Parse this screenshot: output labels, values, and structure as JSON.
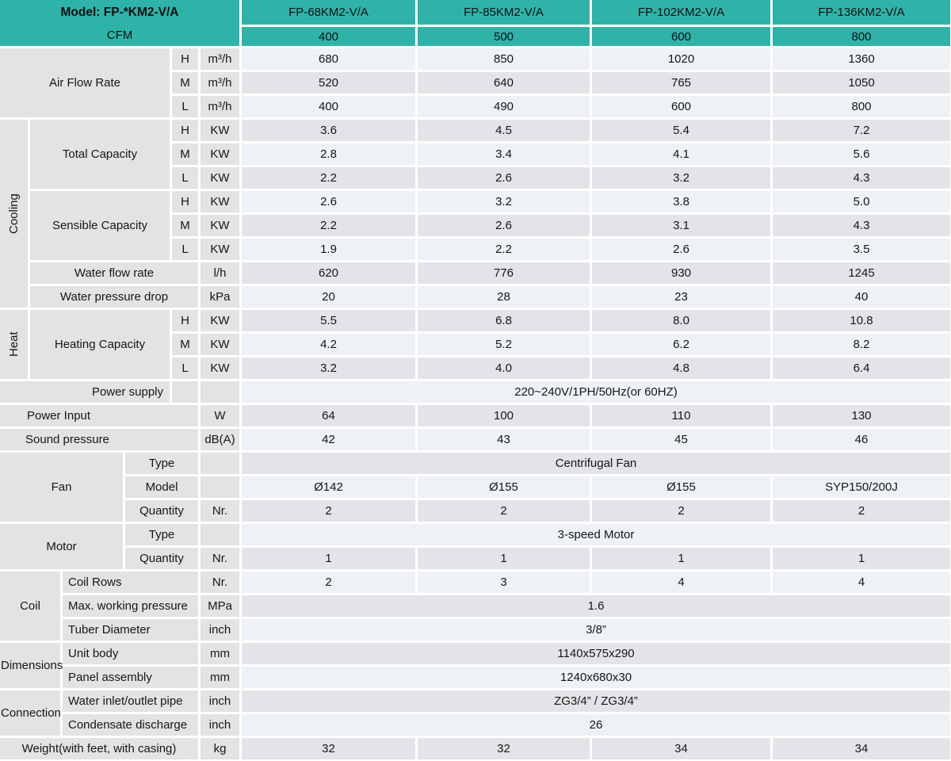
{
  "header": {
    "model_label": "Model: FP-*KM2-V/A",
    "cfm_label": "CFM",
    "models": [
      "FP-68KM2-V/A",
      "FP-85KM2-V/A",
      "FP-102KM2-V/A",
      "FP-136KM2-V/A"
    ],
    "cfm_values": [
      "400",
      "500",
      "600",
      "800"
    ]
  },
  "speeds": [
    "H",
    "M",
    "L"
  ],
  "air_flow": {
    "label": "Air Flow Rate",
    "unit": "m³/h",
    "h": [
      "680",
      "850",
      "1020",
      "1360"
    ],
    "m": [
      "520",
      "640",
      "765",
      "1050"
    ],
    "l": [
      "400",
      "490",
      "600",
      "800"
    ]
  },
  "cooling": {
    "label": "Cooling",
    "total_capacity": {
      "label": "Total Capacity",
      "unit": "KW",
      "h": [
        "3.6",
        "4.5",
        "5.4",
        "7.2"
      ],
      "m": [
        "2.8",
        "3.4",
        "4.1",
        "5.6"
      ],
      "l": [
        "2.2",
        "2.6",
        "3.2",
        "4.3"
      ]
    },
    "sensible_capacity": {
      "label": "Sensible Capacity",
      "unit": "KW",
      "h": [
        "2.6",
        "3.2",
        "3.8",
        "5.0"
      ],
      "m": [
        "2.2",
        "2.6",
        "3.1",
        "4.3"
      ],
      "l": [
        "1.9",
        "2.2",
        "2.6",
        "3.5"
      ]
    },
    "water_flow_rate": {
      "label": "Water flow rate",
      "unit": "l/h",
      "values": [
        "620",
        "776",
        "930",
        "1245"
      ]
    },
    "water_pressure_drop": {
      "label": "Water pressure drop",
      "unit": "kPa",
      "values": [
        "20",
        "28",
        "23",
        "40"
      ]
    }
  },
  "heat": {
    "label": "Heat",
    "heating_capacity": {
      "label": "Heating Capacity",
      "unit": "KW",
      "h": [
        "5.5",
        "6.8",
        "8.0",
        "10.8"
      ],
      "m": [
        "4.2",
        "5.2",
        "6.2",
        "8.2"
      ],
      "l": [
        "3.2",
        "4.0",
        "4.8",
        "6.4"
      ]
    }
  },
  "power_supply": {
    "label": "Power supply",
    "value": "220~240V/1PH/50Hz(or 60HZ)"
  },
  "power_input": {
    "label": "Power Input",
    "unit": "W",
    "values": [
      "64",
      "100",
      "110",
      "130"
    ]
  },
  "sound_pressure": {
    "label": "Sound pressure",
    "unit": "dB(A)",
    "values": [
      "42",
      "43",
      "45",
      "46"
    ]
  },
  "fan": {
    "label": "Fan",
    "type": {
      "label": "Type",
      "value": "Centrifugal Fan"
    },
    "model": {
      "label": "Model",
      "values": [
        "Ø142",
        "Ø155",
        "Ø155",
        "SYP150/200J"
      ]
    },
    "quantity": {
      "label": "Quantity",
      "unit": "Nr.",
      "values": [
        "2",
        "2",
        "2",
        "2"
      ]
    }
  },
  "motor": {
    "label": "Motor",
    "type": {
      "label": "Type",
      "value": "3-speed Motor"
    },
    "quantity": {
      "label": "Quantity",
      "unit": "Nr.",
      "values": [
        "1",
        "1",
        "1",
        "1"
      ]
    }
  },
  "coil": {
    "label": "Coil",
    "rows": {
      "label": "Coil Rows",
      "unit": "Nr.",
      "values": [
        "2",
        "3",
        "4",
        "4"
      ]
    },
    "max_working_pressure": {
      "label": "Max. working pressure",
      "unit": "MPa",
      "value": "1.6"
    },
    "tuber_diameter": {
      "label": "Tuber Diameter",
      "unit": "inch",
      "value": "3/8”"
    }
  },
  "dimensions": {
    "label": "Dimensions",
    "unit_body": {
      "label": "Unit body",
      "unit": "mm",
      "value": "1140x575x290"
    },
    "panel_assembly": {
      "label": "Panel assembly",
      "unit": "mm",
      "value": "1240x680x30"
    }
  },
  "connection": {
    "label": "Connection",
    "water_pipe": {
      "label": "Water inlet/outlet pipe",
      "unit": "inch",
      "value": "ZG3/4” / ZG3/4”"
    },
    "condensate": {
      "label": "Condensate discharge",
      "unit": "inch",
      "value": "26"
    }
  },
  "weight": {
    "label": "Weight(with feet, with casing)",
    "unit": "kg",
    "values": [
      "32",
      "32",
      "34",
      "34"
    ]
  },
  "colors": {
    "accent": "#2fb3a9",
    "label_bg": "#e3e3e4",
    "row_light": "#eef1f5",
    "row_dark": "#e3e4e7"
  }
}
